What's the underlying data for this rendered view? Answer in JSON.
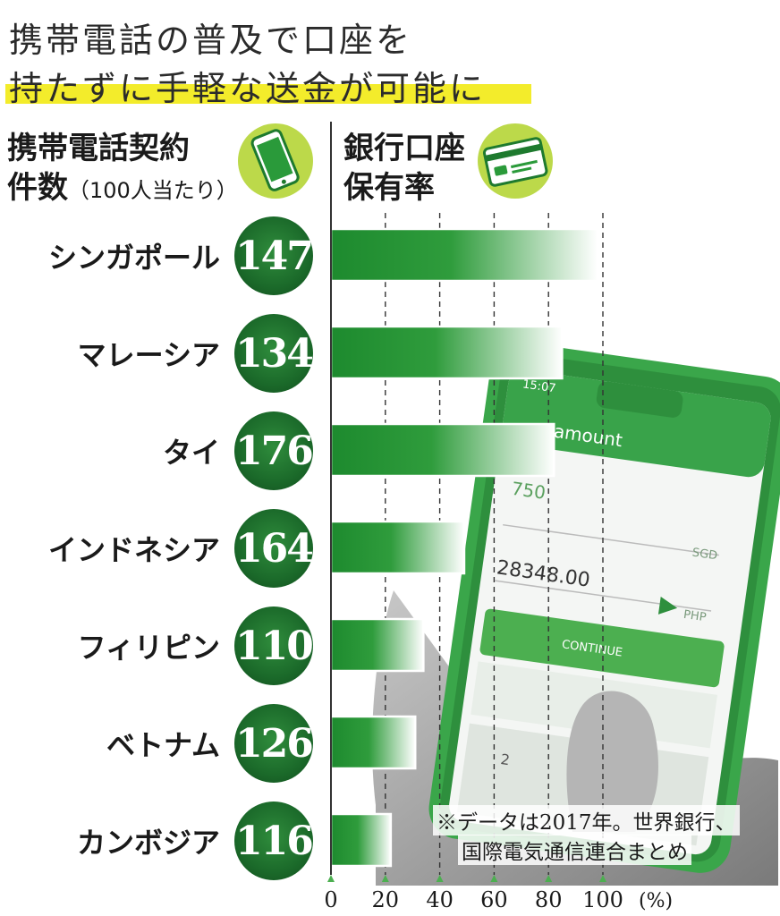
{
  "title": {
    "line1": "携帯電話の普及で口座を",
    "line2": "持たずに手軽な送金が可能に"
  },
  "left_header": {
    "line1": "携帯電話契約",
    "line2": "件数",
    "note": "（100人当たり）",
    "icon": "smartphone-icon"
  },
  "right_header": {
    "line1": "銀行口座",
    "line2": "保有率",
    "icon": "credit-card-icon"
  },
  "colors": {
    "bar_dark": "#1d8a2e",
    "bar_light": "#ffffff",
    "circle": "#1b6a2a",
    "icon_circle": "#bcd94a",
    "highlight": "#f3ec2b",
    "phone_frame": "#3aa64a"
  },
  "chart_data": {
    "type": "bar",
    "orientation": "horizontal",
    "categories": [
      "シンガポール",
      "マレーシア",
      "タイ",
      "インドネシア",
      "フィリピン",
      "ベトナム",
      "カンボジア"
    ],
    "series": [
      {
        "values": [
          98,
          85,
          82,
          49,
          34,
          31,
          22
        ]
      }
    ],
    "mobile_subscriptions": [
      147,
      134,
      176,
      164,
      110,
      126,
      116
    ],
    "xlim": [
      0,
      100
    ],
    "x_ticks": [
      "0",
      "20",
      "40",
      "60",
      "80",
      "100"
    ],
    "x_unit": "(%)",
    "gridlines": [
      20,
      40,
      60,
      80,
      100
    ],
    "grid": true
  },
  "footnote": {
    "line1": "※データは2017年。世界銀行、",
    "line2": "国際電気通信連合まとめ"
  }
}
